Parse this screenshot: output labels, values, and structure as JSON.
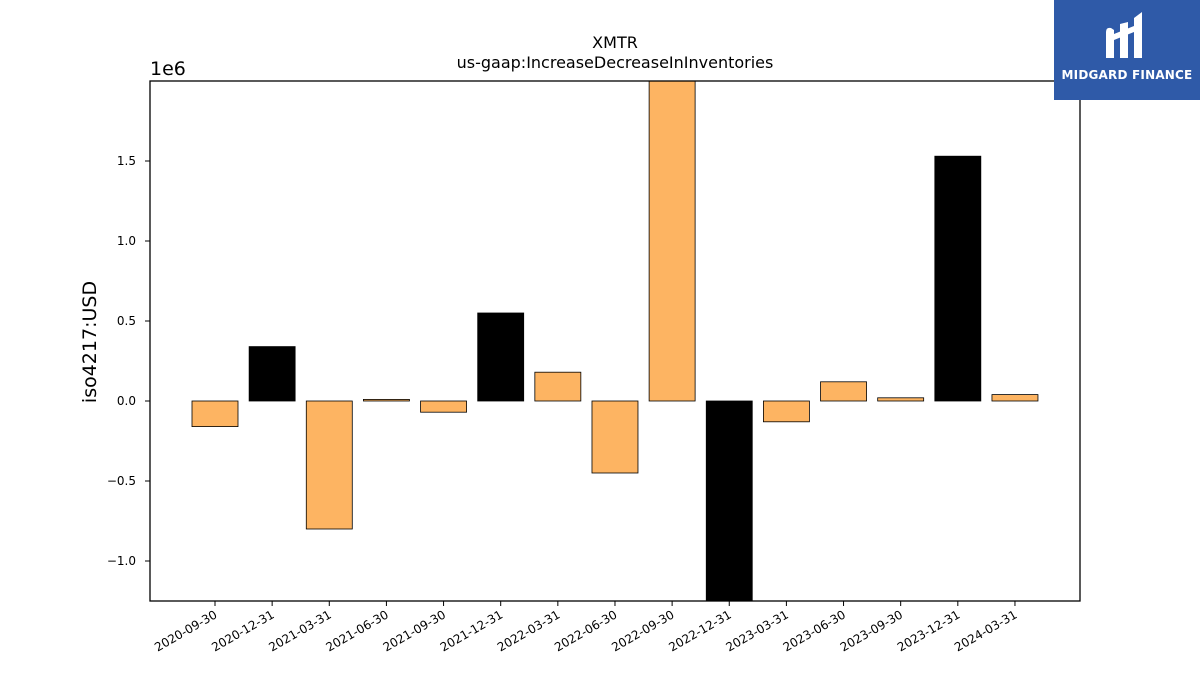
{
  "chart_data": {
    "type": "bar",
    "title": "XMTR",
    "subtitle": "us-gaap:IncreaseDecreaseInInventories",
    "ylabel": "iso4217:USD",
    "xlabel": "",
    "y_multiplier": "1e6",
    "ylim": [
      -1.25,
      2.0
    ],
    "yticks": [
      -1.0,
      -0.5,
      0.0,
      0.5,
      1.0,
      1.5
    ],
    "ytick_labels": [
      "−1.0",
      "−0.5",
      "0.0",
      "0.5",
      "1.0",
      "1.5"
    ],
    "categories": [
      "2020-09-30",
      "2020-12-31",
      "2021-03-31",
      "2021-06-30",
      "2021-09-30",
      "2021-12-31",
      "2022-03-31",
      "2022-06-30",
      "2022-09-30",
      "2022-12-31",
      "2023-03-31",
      "2023-06-30",
      "2023-09-30",
      "2023-12-31",
      "2024-03-31"
    ],
    "values": [
      -0.16,
      0.34,
      -0.8,
      0.01,
      -0.07,
      0.55,
      0.18,
      -0.45,
      2.05,
      -1.3,
      -0.13,
      0.12,
      0.02,
      1.53,
      0.04
    ],
    "bar_colors": [
      "#fdb462",
      "#000000",
      "#fdb462",
      "#fdb462",
      "#fdb462",
      "#000000",
      "#fdb462",
      "#fdb462",
      "#fdb462",
      "#000000",
      "#fdb462",
      "#fdb462",
      "#fdb462",
      "#000000",
      "#fdb462"
    ],
    "grid": false
  },
  "logo": {
    "text": "MIDGARD FINANCE",
    "background": "#2f5aa8"
  }
}
